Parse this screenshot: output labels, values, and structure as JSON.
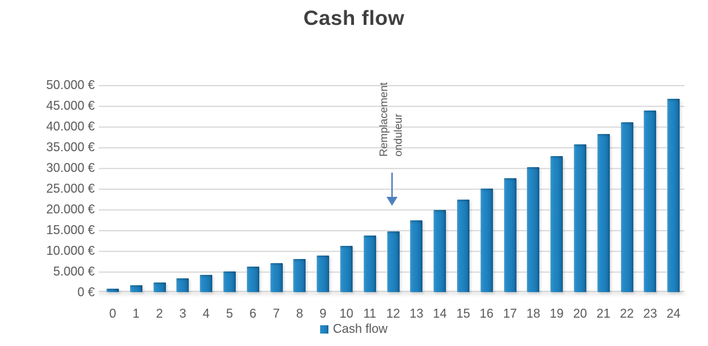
{
  "chart_data": {
    "type": "bar",
    "title": "Cash flow",
    "categories": [
      0,
      1,
      2,
      3,
      4,
      5,
      6,
      7,
      8,
      9,
      10,
      11,
      12,
      13,
      14,
      15,
      16,
      17,
      18,
      19,
      20,
      21,
      22,
      23,
      24
    ],
    "values": [
      800,
      1600,
      2400,
      3300,
      4100,
      5000,
      6200,
      7000,
      8000,
      8900,
      11200,
      13700,
      14700,
      17300,
      19900,
      22300,
      25000,
      27500,
      30200,
      32800,
      35600,
      38200,
      41000,
      43900,
      46700
    ],
    "series": [
      {
        "name": "Cash flow"
      }
    ],
    "xlabel": "",
    "ylabel": "",
    "ylim": [
      0,
      50000
    ],
    "ytick_step": 5000,
    "y_ticks": [
      {
        "value": 50000,
        "label": "50.000 €"
      },
      {
        "value": 45000,
        "label": "45.000 €"
      },
      {
        "value": 40000,
        "label": "40.000 €"
      },
      {
        "value": 35000,
        "label": "35.000 €"
      },
      {
        "value": 30000,
        "label": "30.000 €"
      },
      {
        "value": 25000,
        "label": "25.000 €"
      },
      {
        "value": 20000,
        "label": "20.000 €"
      },
      {
        "value": 15000,
        "label": "15.000 €"
      },
      {
        "value": 10000,
        "label": "10.000 €"
      },
      {
        "value": 5000,
        "label": "5.000 €"
      },
      {
        "value": 0,
        "label": "0 €"
      }
    ],
    "grid": true,
    "legend": {
      "label": "Cash flow",
      "position": "bottom"
    },
    "annotation": {
      "line1": "Remplacement",
      "line2": "onduleur",
      "target_category": 12,
      "arrow_direction": "down"
    },
    "colors": {
      "bar": "#1e81be",
      "bar_light": "#3b97ce",
      "bar_dark": "#135f95",
      "arrow": "#4f81bd",
      "grid": "#dedede",
      "axis_text": "#595959",
      "title_text": "#3f3f3f",
      "background": "#ffffff"
    }
  }
}
